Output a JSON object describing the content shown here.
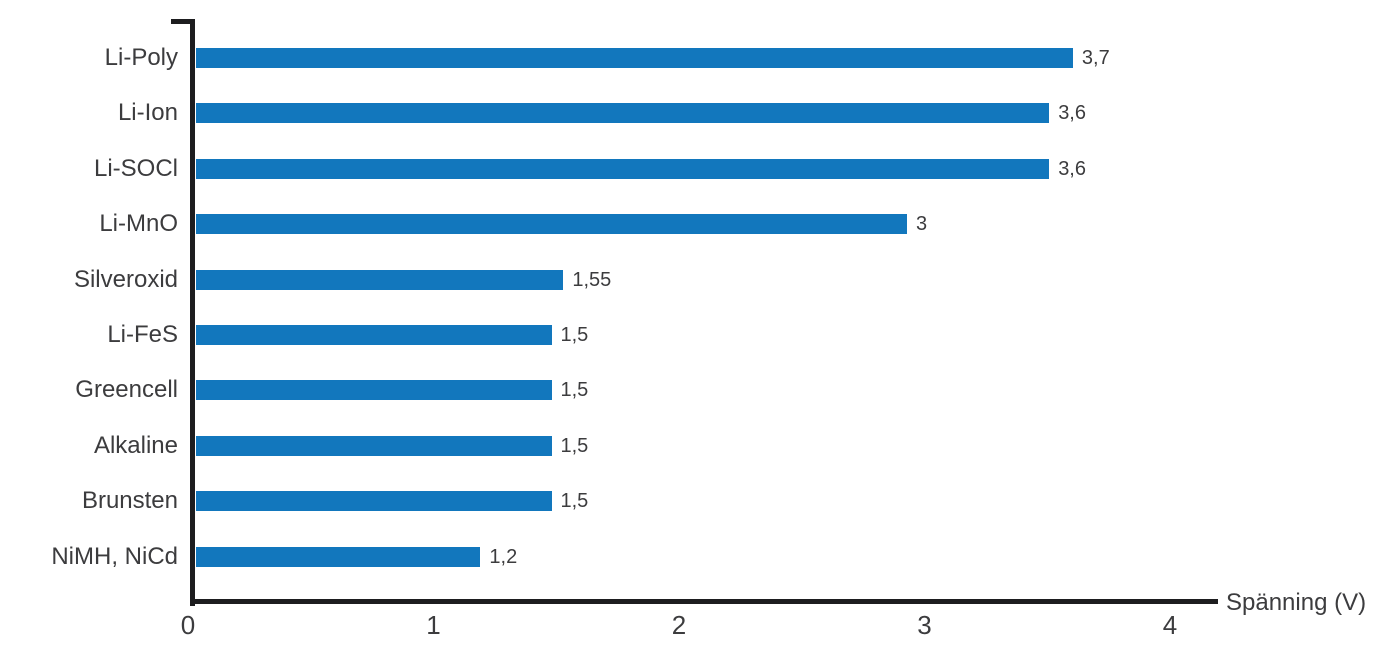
{
  "chart_data": {
    "type": "bar",
    "orientation": "horizontal",
    "title": "",
    "categories": [
      "Li-Poly",
      "Li-Ion",
      "Li-SOCl",
      "Li-MnO",
      "Silveroxid",
      "Li-FeS",
      "Greencell",
      "Alkaline",
      "Brunsten",
      "NiMH, NiCd"
    ],
    "values": [
      3.7,
      3.6,
      3.6,
      3,
      1.55,
      1.5,
      1.5,
      1.5,
      1.5,
      1.2
    ],
    "value_labels": [
      "3,7",
      "3,6",
      "3,6",
      "3",
      "1,55",
      "1,5",
      "1,5",
      "1,5",
      "1,5",
      "1,2"
    ],
    "xlabel": "Spänning (V)",
    "ylabel": "",
    "x_ticks": [
      0,
      1,
      2,
      3,
      4
    ],
    "x_tick_labels": [
      "0",
      "1",
      "2",
      "3",
      "4"
    ],
    "xlim": [
      0,
      4
    ],
    "grid": false,
    "legend_position": "none",
    "bar_color": "#1277BD",
    "text_color": "#3C3C3E",
    "axis_color": "#1D1D1F"
  }
}
